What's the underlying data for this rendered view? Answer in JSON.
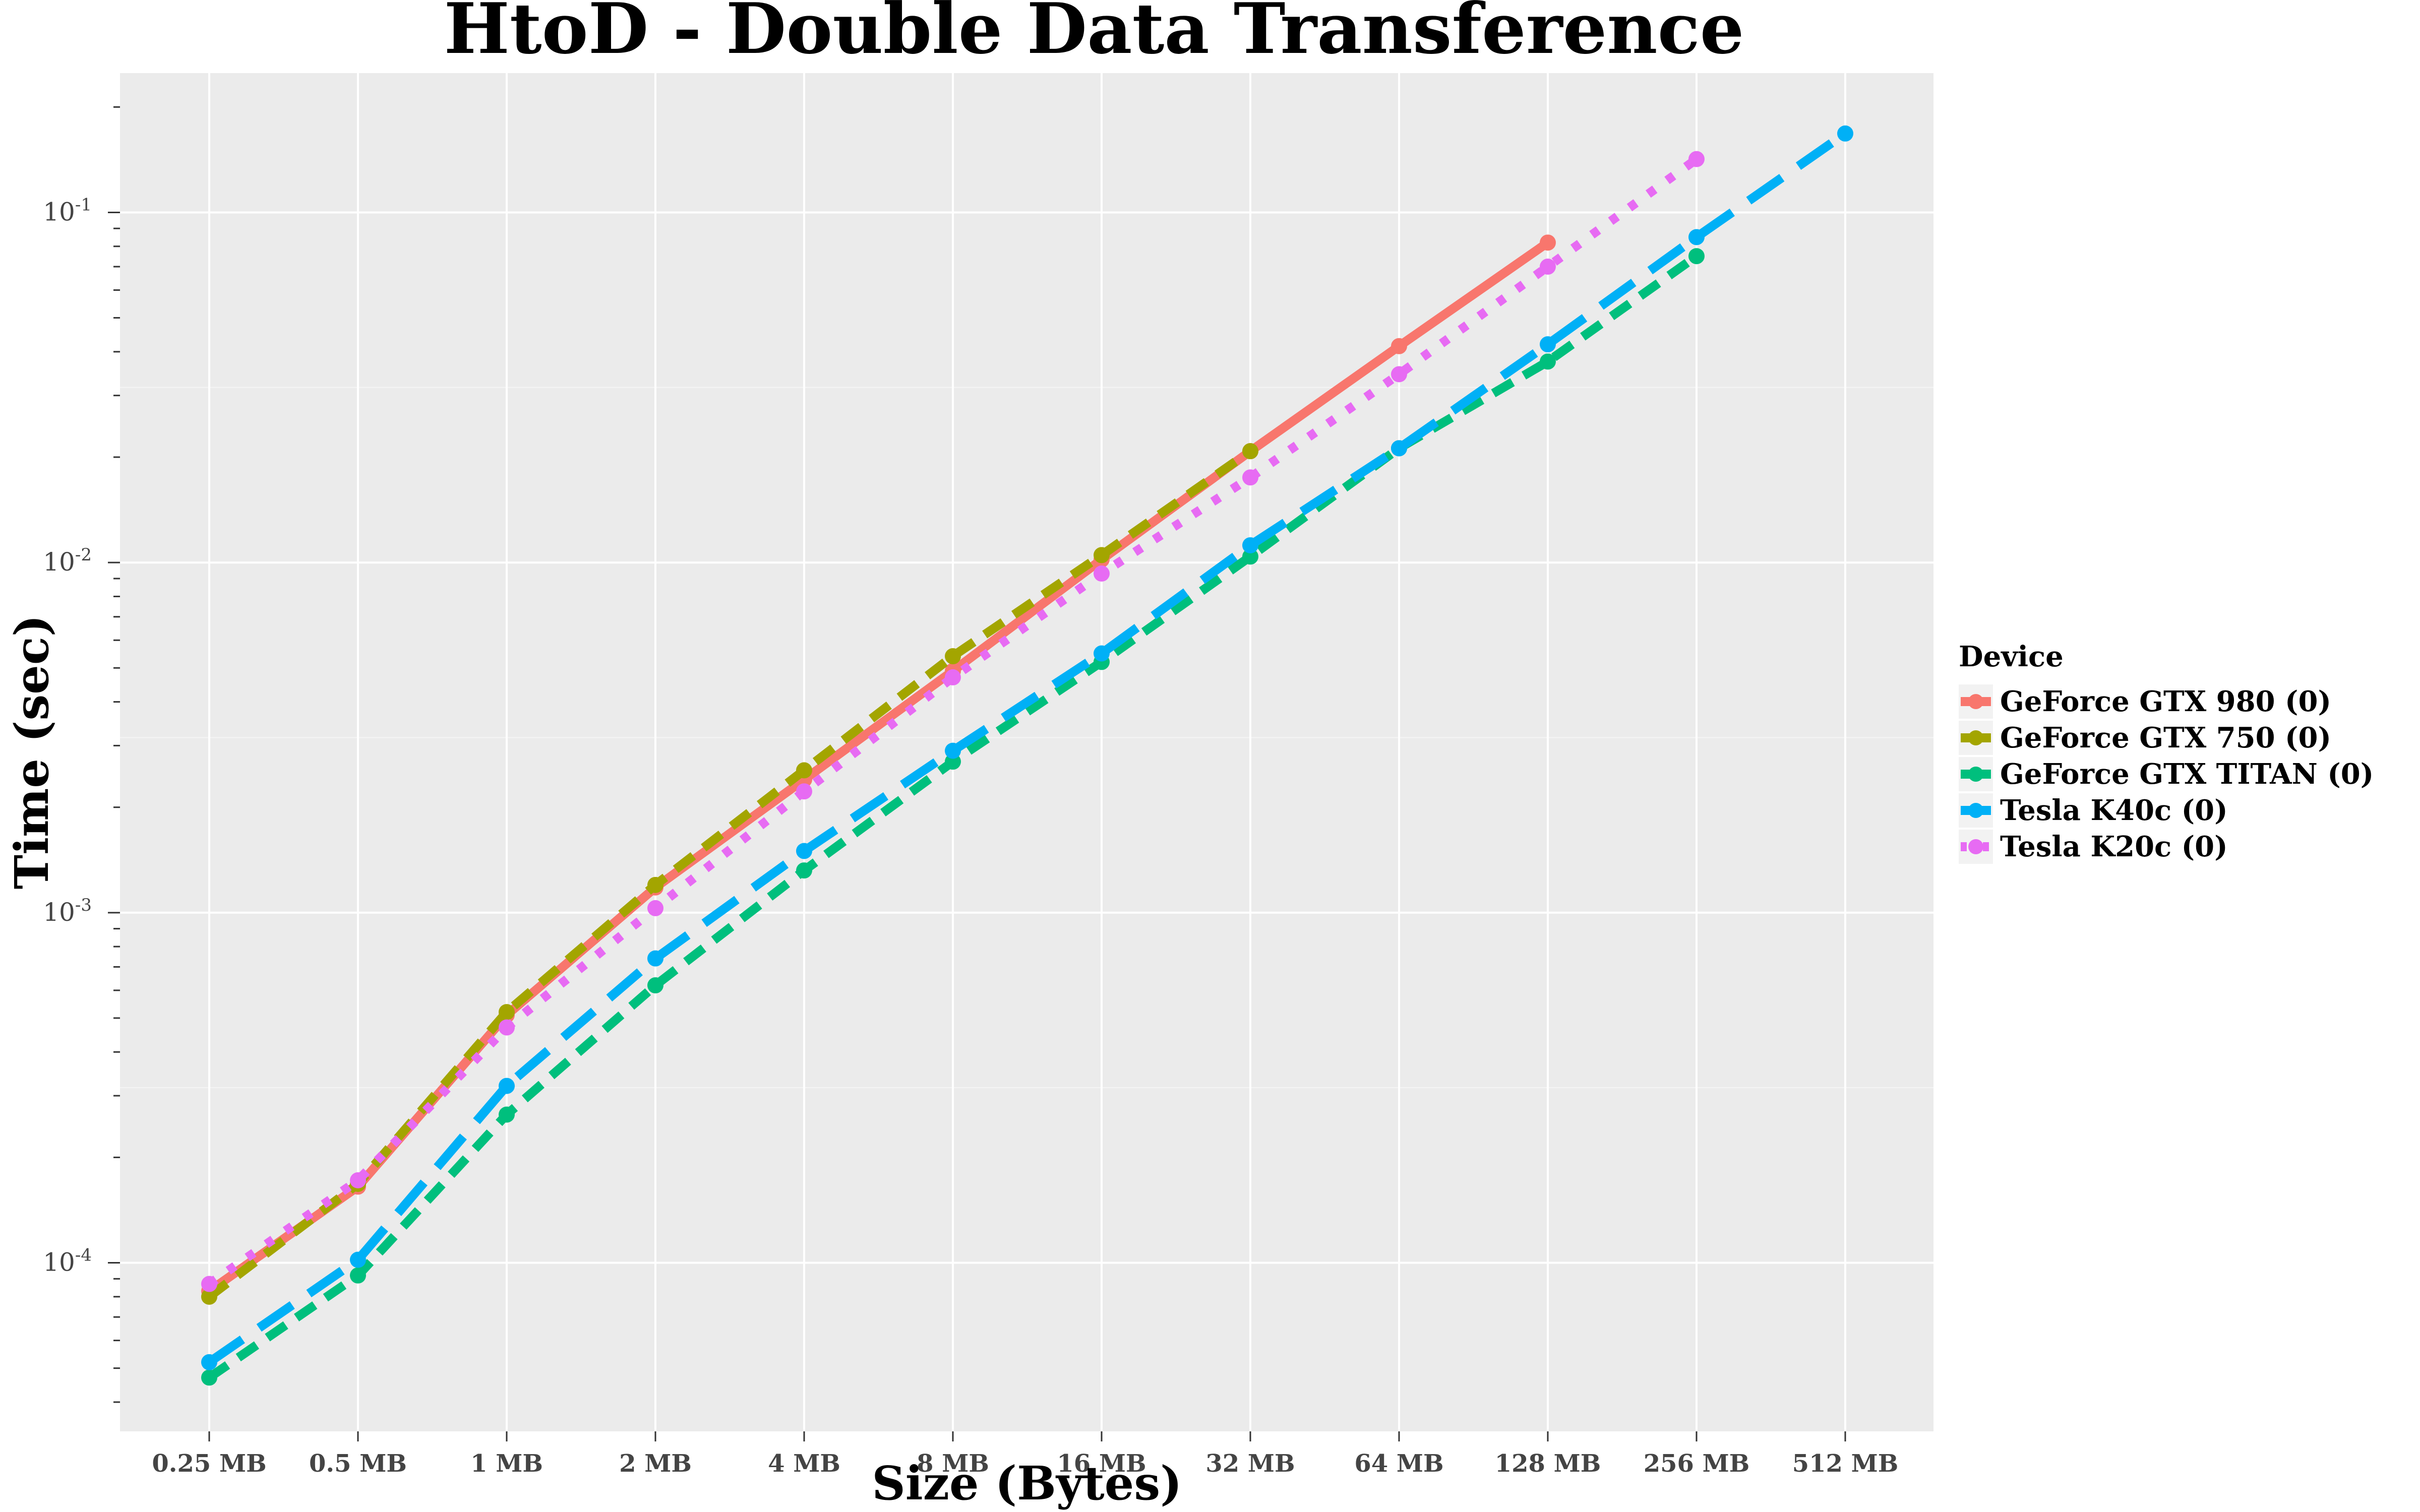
{
  "chart_data": {
    "type": "line",
    "title": "HtoD - Double Data Transference",
    "xlabel": "Size (Bytes)",
    "ylabel": "Time (sec)",
    "y_scale": "log",
    "ylim": [
      3.3e-05,
      0.25
    ],
    "grid": true,
    "legend_position": "right",
    "categories": [
      "0.25 MB",
      "0.5 MB",
      "1 MB",
      "2 MB",
      "4 MB",
      "8 MB",
      "16 MB",
      "32 MB",
      "64 MB",
      "128 MB",
      "256 MB",
      "512 MB"
    ],
    "y_ticks": [
      {
        "value": 0.0001,
        "base": "10",
        "exp": "-4"
      },
      {
        "value": 0.001,
        "base": "10",
        "exp": "-3"
      },
      {
        "value": 0.01,
        "base": "10",
        "exp": "-2"
      },
      {
        "value": 0.1,
        "base": "10",
        "exp": "-1"
      }
    ],
    "legend_title": "Device",
    "series": [
      {
        "name": "GeForce GTX 980 (0)",
        "color": "#F8766D",
        "dash": "solid",
        "values": [
          8.3e-05,
          0.000165,
          0.00051,
          0.00118,
          0.0024,
          0.0049,
          0.0102,
          0.0208,
          0.0415,
          0.082,
          null,
          null
        ]
      },
      {
        "name": "GeForce GTX 750 (0)",
        "color": "#A3A500",
        "dash": "dashed",
        "values": [
          8e-05,
          0.000168,
          0.00052,
          0.0012,
          0.00255,
          0.0054,
          0.0105,
          0.0208,
          null,
          null,
          null,
          null
        ]
      },
      {
        "name": "GeForce GTX TITAN (0)",
        "color": "#00BF7D",
        "dash": "dashed",
        "values": [
          4.7e-05,
          9.2e-05,
          0.000265,
          0.00062,
          0.00132,
          0.0027,
          0.0052,
          0.0104,
          0.0212,
          0.0375,
          0.075,
          null
        ]
      },
      {
        "name": "Tesla K40c (0)",
        "color": "#00B0F6",
        "dash": "longdash",
        "values": [
          5.2e-05,
          0.000102,
          0.00032,
          0.00074,
          0.0015,
          0.0029,
          0.0055,
          0.0112,
          0.0212,
          0.042,
          0.085,
          0.168
        ]
      },
      {
        "name": "Tesla K20c (0)",
        "color": "#E76BF3",
        "dash": "dotted",
        "values": [
          8.7e-05,
          0.000172,
          0.00047,
          0.00103,
          0.00222,
          0.0047,
          0.0093,
          0.0175,
          0.0345,
          0.07,
          0.142,
          null
        ]
      }
    ]
  }
}
